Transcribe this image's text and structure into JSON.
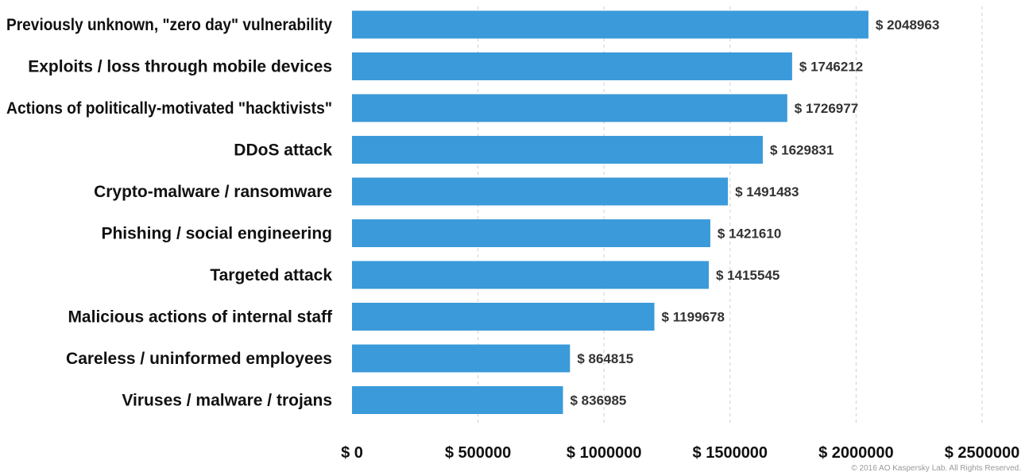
{
  "chart_data": {
    "type": "bar",
    "orientation": "horizontal",
    "categories": [
      "Previously unknown, \"zero day\" vulnerability",
      "Exploits / loss through mobile devices",
      "Actions of politically-motivated \"hacktivists\"",
      "DDoS attack",
      "Crypto-malware / ransomware",
      "Phishing / social engineering",
      "Targeted attack",
      "Malicious actions of internal staff",
      "Careless / uninformed employees",
      "Viruses / malware / trojans"
    ],
    "values": [
      2048963,
      1746212,
      1726977,
      1629831,
      1491483,
      1421610,
      1415545,
      1199678,
      864815,
      836985
    ],
    "value_labels": [
      "$ 2048963",
      "$ 1746212",
      "$ 1726977",
      "$ 1629831",
      "$ 1491483",
      "$ 1421610",
      "$ 1415545",
      "$ 1199678",
      "$ 864815",
      "$ 836985"
    ],
    "xlim": [
      0,
      2500000
    ],
    "x_ticks": [
      0,
      500000,
      1000000,
      1500000,
      2000000,
      2500000
    ],
    "x_tick_labels": [
      "$ 0",
      "$ 500000",
      "$ 1000000",
      "$ 1500000",
      "$ 2000000",
      "$ 2500000"
    ],
    "grid": true,
    "bar_color": "#3b9ad9"
  },
  "footer": {
    "copyright": "© 2016 AO Kaspersky Lab. All Rights Reserved."
  }
}
